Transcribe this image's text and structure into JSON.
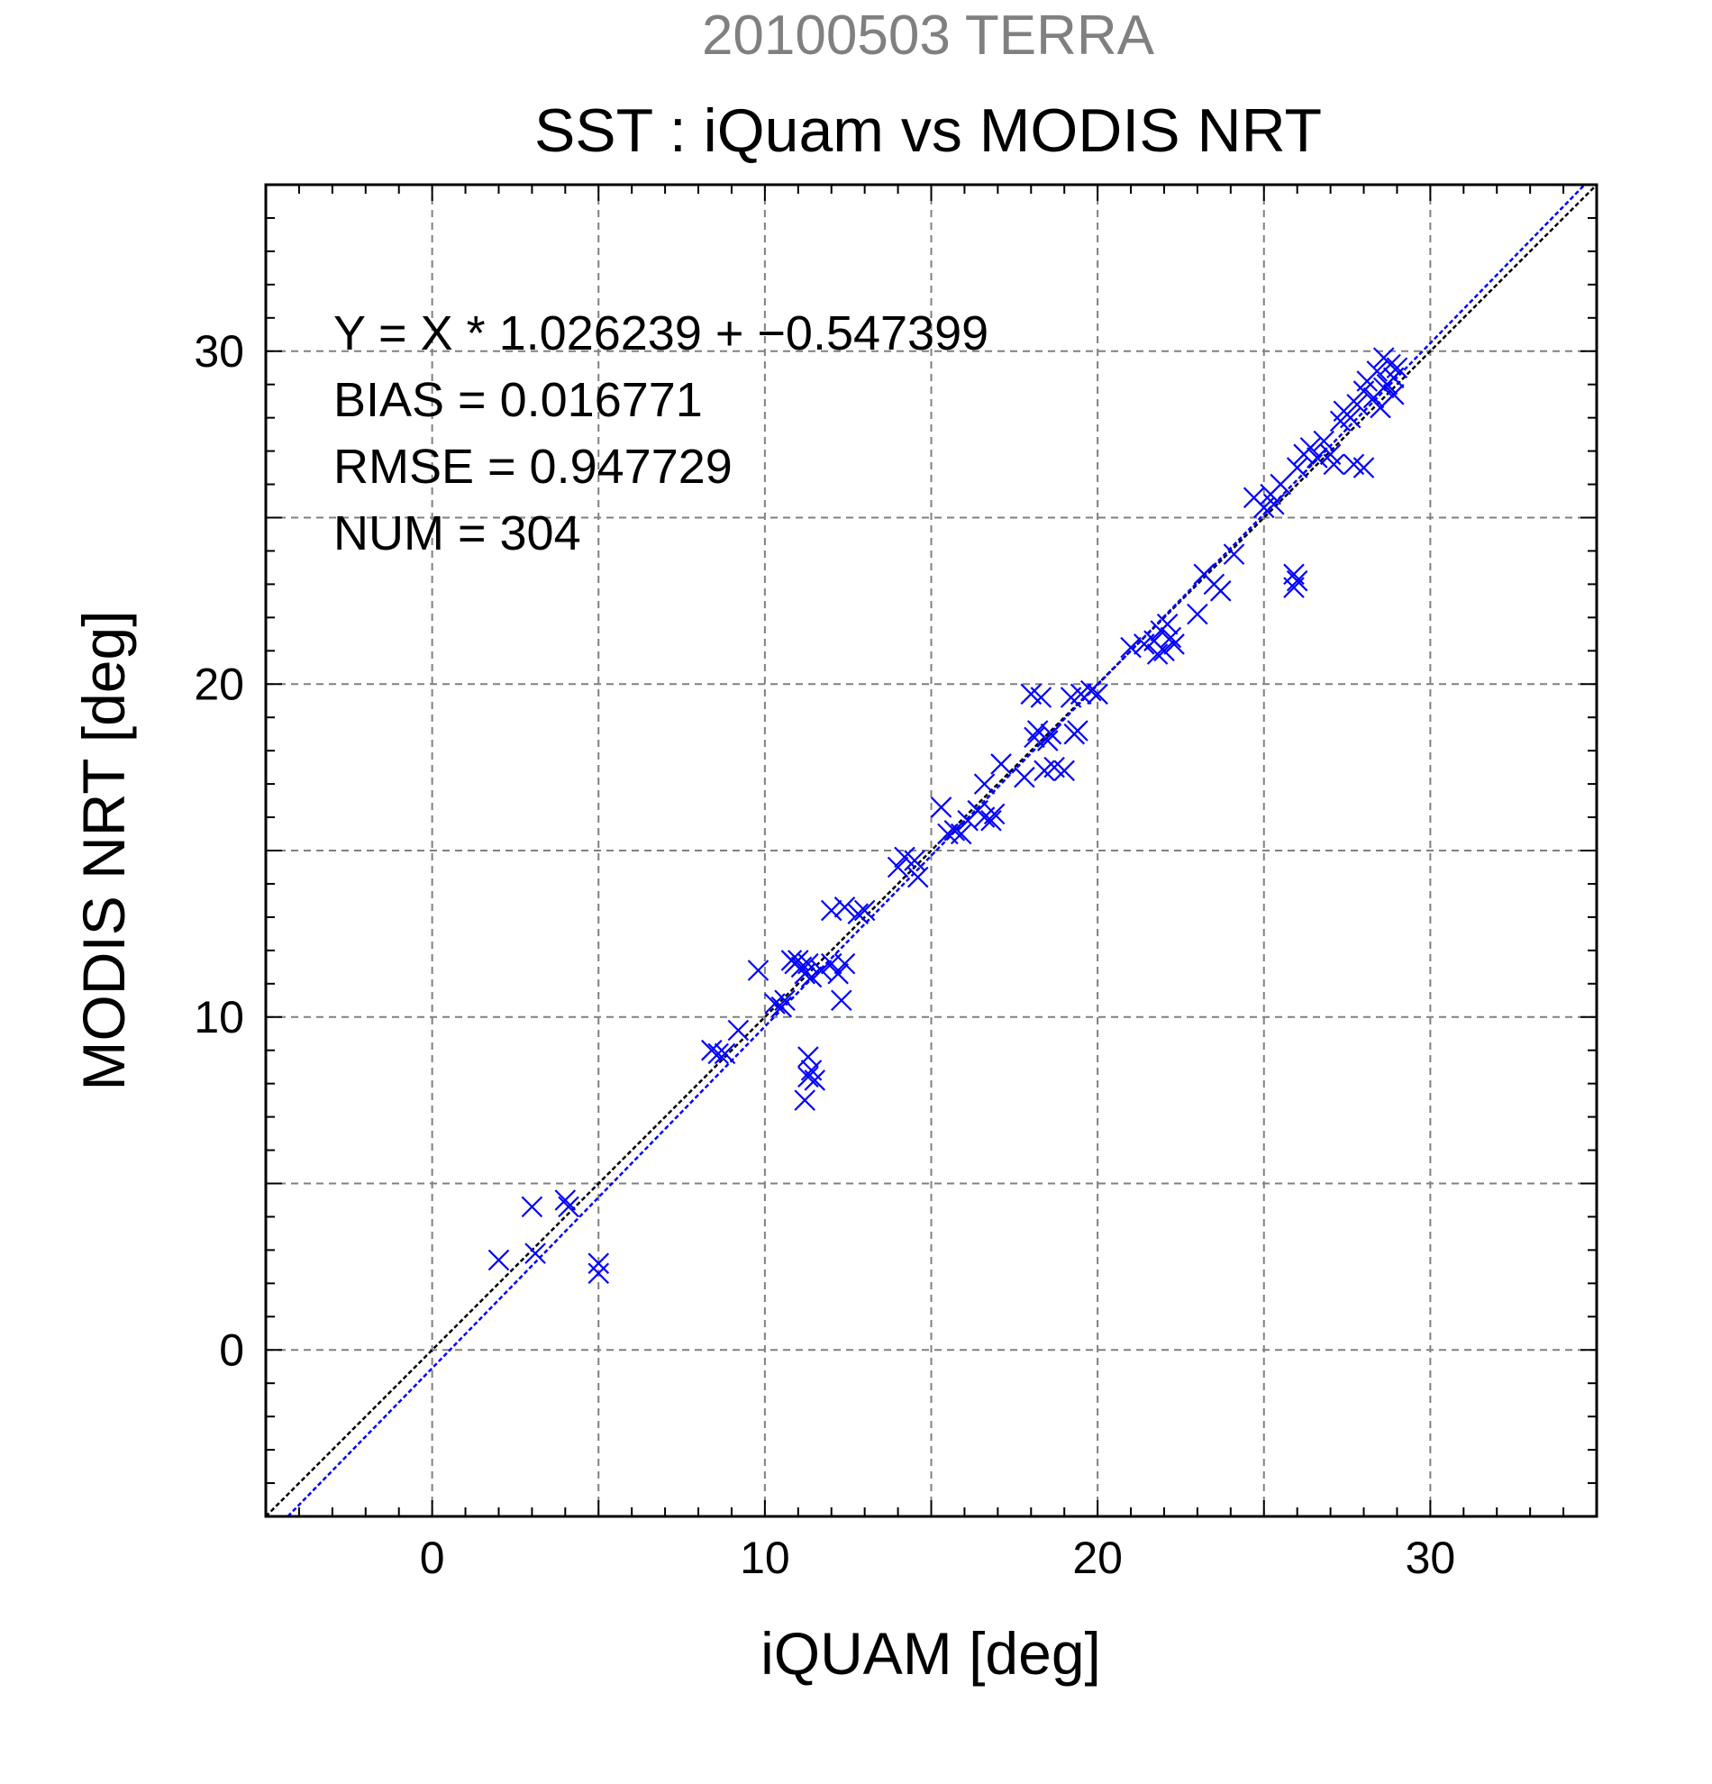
{
  "chart_data": {
    "type": "scatter",
    "title": "20100503 TERRA",
    "subtitle": "SST : iQuam vs MODIS NRT",
    "xlabel": "iQUAM [deg]",
    "ylabel": "MODIS NRT [deg]",
    "xlim": [
      -5,
      35
    ],
    "ylim": [
      -5,
      35
    ],
    "xticks": [
      0,
      10,
      20,
      30
    ],
    "yticks": [
      0,
      10,
      20,
      30
    ],
    "grid": true,
    "annotations": [
      "Y = X * 1.026239 + −0.547399",
      "BIAS = 0.016771",
      "RMSE = 0.947729",
      "NUM = 304"
    ],
    "reference_lines": [
      {
        "kind": "one-to-one",
        "slope": 1,
        "intercept": 0,
        "color": "#000000"
      },
      {
        "kind": "regression",
        "slope": 1.026239,
        "intercept": -0.547399,
        "color": "#0000ff"
      }
    ],
    "series": [
      {
        "color": "#0000ff",
        "marker": "x",
        "points": [
          [
            2.0,
            2.7
          ],
          [
            3.0,
            4.3
          ],
          [
            3.1,
            2.9
          ],
          [
            4.0,
            4.5
          ],
          [
            4.1,
            4.3
          ],
          [
            5.0,
            2.6
          ],
          [
            5.0,
            2.3
          ],
          [
            8.4,
            9.0
          ],
          [
            8.6,
            8.9
          ],
          [
            8.8,
            8.9
          ],
          [
            9.2,
            9.6
          ],
          [
            9.8,
            11.4
          ],
          [
            10.3,
            10.4
          ],
          [
            10.5,
            10.3
          ],
          [
            10.6,
            10.5
          ],
          [
            10.8,
            11.7
          ],
          [
            10.9,
            11.6
          ],
          [
            11.0,
            11.7
          ],
          [
            11.1,
            11.5
          ],
          [
            11.2,
            11.3
          ],
          [
            11.3,
            11.6
          ],
          [
            11.4,
            11.2
          ],
          [
            11.3,
            8.8
          ],
          [
            11.3,
            8.2
          ],
          [
            11.2,
            7.5
          ],
          [
            11.4,
            8.4
          ],
          [
            11.5,
            8.1
          ],
          [
            11.7,
            11.4
          ],
          [
            12.0,
            11.6
          ],
          [
            12.2,
            11.3
          ],
          [
            12.3,
            10.5
          ],
          [
            12.4,
            11.6
          ],
          [
            12.0,
            13.2
          ],
          [
            12.4,
            13.3
          ],
          [
            12.8,
            13.1
          ],
          [
            13.0,
            13.2
          ],
          [
            14.0,
            14.5
          ],
          [
            14.2,
            14.8
          ],
          [
            14.5,
            14.7
          ],
          [
            14.6,
            14.2
          ],
          [
            15.3,
            16.3
          ],
          [
            15.5,
            15.5
          ],
          [
            15.7,
            15.6
          ],
          [
            15.9,
            15.5
          ],
          [
            16.1,
            15.9
          ],
          [
            16.4,
            16.2
          ],
          [
            16.6,
            16.0
          ],
          [
            16.6,
            17.0
          ],
          [
            16.8,
            15.9
          ],
          [
            16.9,
            16.1
          ],
          [
            17.1,
            17.6
          ],
          [
            17.8,
            17.2
          ],
          [
            18.0,
            19.7
          ],
          [
            18.1,
            18.4
          ],
          [
            18.2,
            18.6
          ],
          [
            18.3,
            19.6
          ],
          [
            18.4,
            17.4
          ],
          [
            18.5,
            18.3
          ],
          [
            18.6,
            18.5
          ],
          [
            18.7,
            17.5
          ],
          [
            19.0,
            17.4
          ],
          [
            19.2,
            19.6
          ],
          [
            19.3,
            18.5
          ],
          [
            19.4,
            18.6
          ],
          [
            19.5,
            19.7
          ],
          [
            19.8,
            19.8
          ],
          [
            20.0,
            19.7
          ],
          [
            21.0,
            21.1
          ],
          [
            21.4,
            21.2
          ],
          [
            21.7,
            21.3
          ],
          [
            21.8,
            20.9
          ],
          [
            21.9,
            21.6
          ],
          [
            22.0,
            21.0
          ],
          [
            22.1,
            21.8
          ],
          [
            22.2,
            21.4
          ],
          [
            22.3,
            21.2
          ],
          [
            23.0,
            22.1
          ],
          [
            23.2,
            23.3
          ],
          [
            23.5,
            23.0
          ],
          [
            23.7,
            22.8
          ],
          [
            24.1,
            23.9
          ],
          [
            24.7,
            25.6
          ],
          [
            25.0,
            25.3
          ],
          [
            25.2,
            25.7
          ],
          [
            25.3,
            25.4
          ],
          [
            25.5,
            26.0
          ],
          [
            25.9,
            23.3
          ],
          [
            25.9,
            22.9
          ],
          [
            26.0,
            23.1
          ],
          [
            26.0,
            26.5
          ],
          [
            26.2,
            26.9
          ],
          [
            26.4,
            27.1
          ],
          [
            26.6,
            26.8
          ],
          [
            26.8,
            27.3
          ],
          [
            27.0,
            26.9
          ],
          [
            27.1,
            26.6
          ],
          [
            27.3,
            27.9
          ],
          [
            27.4,
            28.2
          ],
          [
            27.6,
            28.0
          ],
          [
            27.7,
            26.6
          ],
          [
            27.8,
            28.4
          ],
          [
            28.0,
            26.5
          ],
          [
            28.0,
            28.8
          ],
          [
            28.1,
            29.1
          ],
          [
            28.3,
            28.6
          ],
          [
            28.4,
            29.4
          ],
          [
            28.5,
            28.3
          ],
          [
            28.6,
            29.8
          ],
          [
            28.7,
            29.0
          ],
          [
            28.8,
            29.6
          ],
          [
            28.9,
            29.2
          ],
          [
            29.0,
            29.5
          ],
          [
            28.6,
            28.9
          ],
          [
            28.9,
            28.7
          ]
        ]
      }
    ]
  }
}
